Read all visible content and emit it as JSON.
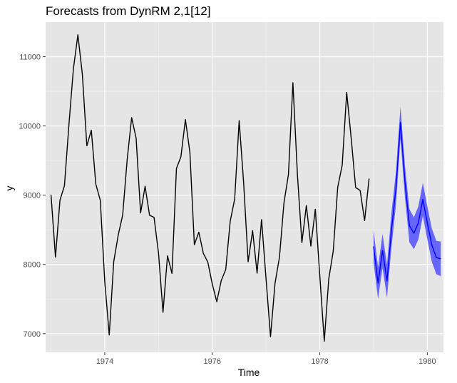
{
  "chart_data": {
    "type": "line",
    "title": "Forecasts from DynRM 2,1[12]",
    "xlabel": "Time",
    "ylabel": "y",
    "xlim": [
      1972.9,
      1980.3
    ],
    "ylim": [
      6730,
      11500
    ],
    "x_ticks": [
      1974,
      1976,
      1978,
      1980
    ],
    "x_tick_labels": [
      "1974",
      "1976",
      "1978",
      "1980"
    ],
    "y_ticks": [
      7000,
      8000,
      9000,
      10000,
      11000
    ],
    "y_tick_labels": [
      "7000",
      "8000",
      "9000",
      "10000",
      "11000"
    ],
    "grid": true,
    "legend": "none",
    "background": "#e5e5e5",
    "series": [
      {
        "role": "observed",
        "color": "#000000",
        "x_start": 1973.0,
        "x_step": 0.083333,
        "values": [
          9007,
          8106,
          8928,
          9137,
          10017,
          10826,
          11317,
          10744,
          9713,
          9938,
          9161,
          8927,
          7750,
          6981,
          8038,
          8422,
          8714,
          9512,
          10120,
          9823,
          8743,
          9129,
          8710,
          8680,
          8162,
          7306,
          8124,
          7870,
          9387,
          9556,
          10093,
          9620,
          8285,
          8466,
          8160,
          8034,
          7717,
          7461,
          7767,
          7925,
          8623,
          8945,
          10078,
          9179,
          8037,
          8488,
          7874,
          8647,
          7792,
          6957,
          7726,
          8106,
          8890,
          9299,
          10625,
          9302,
          8314,
          8850,
          8265,
          8796,
          7836,
          6892,
          7791,
          8192,
          9115,
          9434,
          10484,
          9827,
          9110,
          9070,
          8633,
          9240
        ]
      },
      {
        "role": "forecast",
        "color": "#0000ff",
        "x_start": 1979.0,
        "x_step": 0.083333,
        "values": [
          8260,
          7730,
          8200,
          7760,
          8500,
          9100,
          10050,
          9200,
          8560,
          8450,
          8600,
          8940,
          8600,
          8280,
          8100,
          8080
        ]
      }
    ],
    "interval": {
      "color": "#6666ff",
      "x_start": 1979.0,
      "x_step": 0.083333,
      "lower": [
        8030,
        7500,
        7950,
        7520,
        8250,
        8860,
        9820,
        8970,
        8320,
        8220,
        8360,
        8700,
        8360,
        8040,
        7860,
        7830
      ],
      "upper": [
        8490,
        7960,
        8440,
        8000,
        8750,
        9340,
        10280,
        9430,
        8800,
        8680,
        8840,
        9180,
        8840,
        8520,
        8340,
        8330
      ]
    }
  }
}
